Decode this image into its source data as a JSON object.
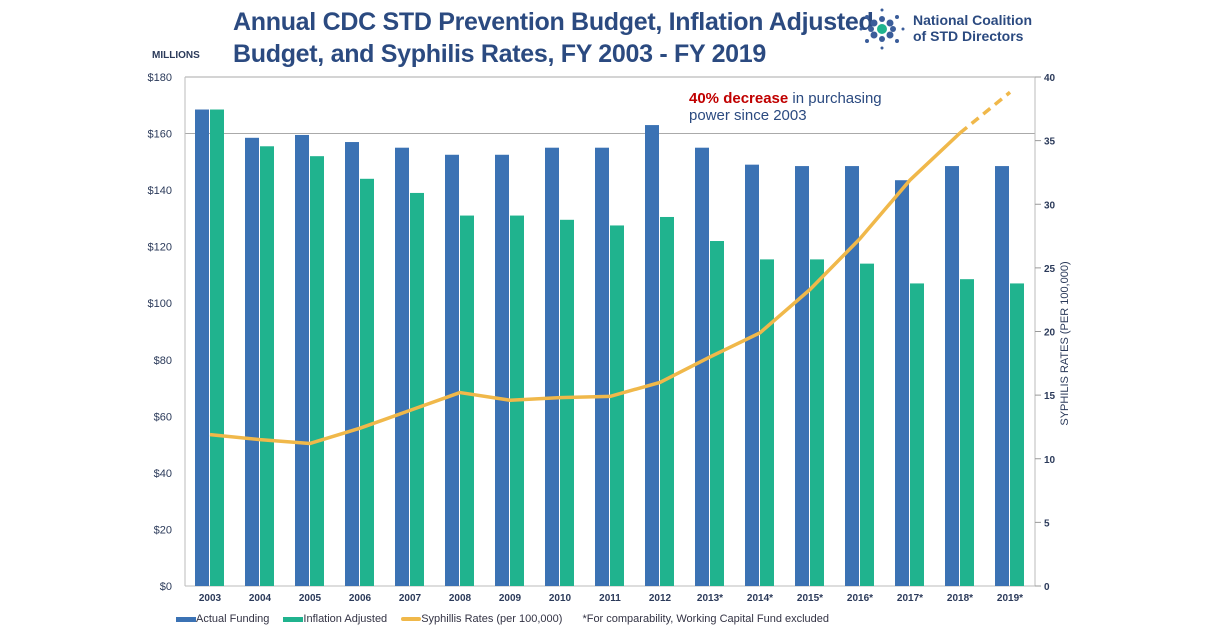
{
  "header": {
    "title_line1": "Annual CDC STD Prevention Budget, Inflation Adjusted",
    "title_line2": "Budget, and Syphilis Rates, FY 2003 - FY 2019",
    "logo_line1": "National Coalition",
    "logo_line2": "of STD Directors",
    "left_unit": "MILLIONS"
  },
  "annotation": {
    "highlight": "40% decrease",
    "rest_line1": " in purchasing",
    "line2": "power since 2003"
  },
  "footnote": "*For comparability, Working Capital Fund excluded",
  "colors": {
    "actual": "#3b72b4",
    "inflation": "#20b38e",
    "syphilis": "#f0b84a",
    "title": "#2b4a80",
    "highlight": "#c00000"
  },
  "chart_data": {
    "type": "bar+line",
    "categories": [
      "2003",
      "2004",
      "2005",
      "2006",
      "2007",
      "2008",
      "2009",
      "2010",
      "2011",
      "2012",
      "2013*",
      "2014*",
      "2015*",
      "2016*",
      "2017*",
      "2018*",
      "2019*"
    ],
    "series": [
      {
        "name": "Actual Funding",
        "type": "bar",
        "axis": "left",
        "values": [
          168.5,
          158.5,
          159.5,
          157,
          155,
          152.5,
          152.5,
          155,
          155,
          163,
          155,
          149,
          148.5,
          148.5,
          143.5,
          148.5,
          148.5
        ]
      },
      {
        "name": "Inflation Adjusted",
        "type": "bar",
        "axis": "left",
        "values": [
          168.5,
          155.5,
          152,
          144,
          139,
          131,
          131,
          129.5,
          127.5,
          130.5,
          122,
          115.5,
          115.5,
          114,
          107,
          108.5,
          107
        ]
      },
      {
        "name": "Syphillis Rates (per 100,000)",
        "type": "line",
        "axis": "right",
        "values": [
          11.9,
          11.5,
          11.2,
          12.4,
          13.8,
          15.2,
          14.6,
          14.8,
          14.9,
          16.0,
          18.0,
          19.9,
          23.3,
          27.3,
          31.9,
          35.6,
          38.8
        ],
        "dashed_from": "2018*"
      }
    ],
    "left_axis": {
      "range": [
        0,
        180
      ],
      "ticks": [
        "$0",
        "$20",
        "$40",
        "$60",
        "$80",
        "$100",
        "$120",
        "$140",
        "$160",
        "$180"
      ]
    },
    "right_axis": {
      "label": "SYPHILIS RATES (PER 100,000)",
      "range": [
        0,
        40
      ],
      "ticks": [
        "0",
        "5",
        "10",
        "15",
        "20",
        "25",
        "30",
        "35",
        "40"
      ]
    },
    "legend_placement": "bottom"
  }
}
